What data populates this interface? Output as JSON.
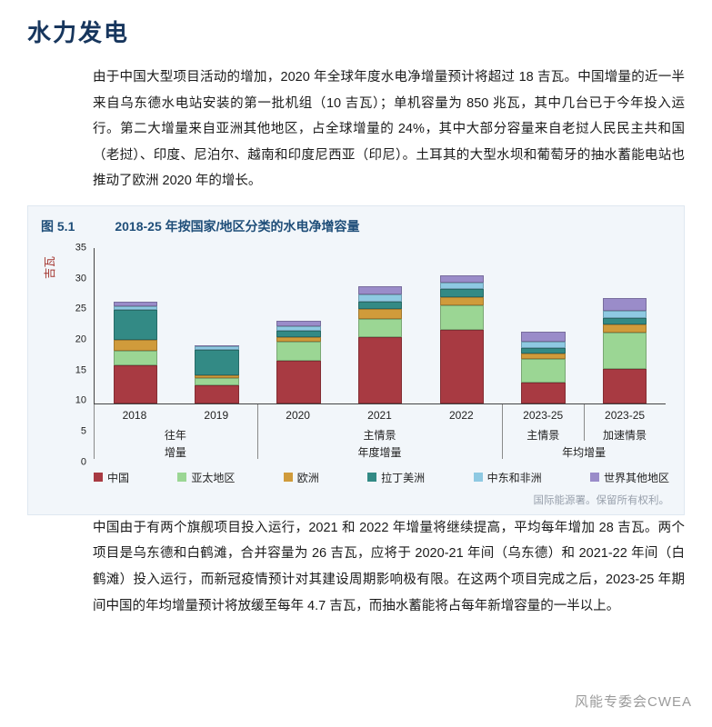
{
  "page": {
    "title": "水力发电",
    "paragraph1": "由于中国大型项目活动的增加，2020 年全球年度水电净增量预计将超过 18 吉瓦。中国增量的近一半来自乌东德水电站安装的第一批机组（10 吉瓦）；单机容量为 850 兆瓦，其中几台已于今年投入运行。第二大增量来自亚洲其他地区，占全球增量的 24%，其中大部分容量来自老挝人民民主共和国（老挝）、印度、尼泊尔、越南和印度尼西亚（印尼）。土耳其的大型水坝和葡萄牙的抽水蓄能电站也推动了欧洲 2020 年的增长。",
    "paragraph2": "中国由于有两个旗舰项目投入运行，2021 和 2022 年增量将继续提高，平均每年增加 28 吉瓦。两个项目是乌东德和白鹤滩，合并容量为 26 吉瓦，应将于 2020-21 年间（乌东德）和 2021-22 年间（白鹤滩）投入运行，而新冠疫情预计对其建设周期影响极有限。在这两个项目完成之后，2023-25 年期间中国的年均增量预计将放缓至每年 4.7 吉瓦，而抽水蓄能将占每年新增容量的一半以上。",
    "watermark": "风能专委会CWEA"
  },
  "figure": {
    "number": "图 5.1",
    "title": "2018-25 年按国家/地区分类的水电净增容量",
    "source": "国际能源署。保留所有权利。"
  },
  "chart_data": {
    "type": "bar",
    "stacked": true,
    "title": "2018-25 年按国家/地区分类的水电净增容量",
    "xlabel": "",
    "ylabel": "吉瓦",
    "ylim": [
      0,
      35
    ],
    "ytick_step": 5,
    "grid": false,
    "legend_position": "bottom",
    "categories": [
      "2018",
      "2019",
      "2020",
      "2021",
      "2022",
      "2023-25",
      "2023-25"
    ],
    "series": [
      {
        "name": "中国",
        "color": "#a83a42",
        "values": [
          8.5,
          4.1,
          9.5,
          15.0,
          16.5,
          4.7,
          7.8
        ]
      },
      {
        "name": "亚太地区",
        "color": "#9bd694",
        "values": [
          3.4,
          1.5,
          4.3,
          4.1,
          5.5,
          5.2,
          8.2
        ]
      },
      {
        "name": "欧洲",
        "color": "#d09b3b",
        "values": [
          2.4,
          0.8,
          1.2,
          2.1,
          2.0,
          1.4,
          1.7
        ]
      },
      {
        "name": "拉丁美洲",
        "color": "#338a85",
        "values": [
          6.8,
          5.6,
          1.3,
          1.6,
          1.7,
          1.2,
          1.6
        ]
      },
      {
        "name": "中东和非洲",
        "color": "#8ec9e2",
        "values": [
          0.8,
          0.8,
          1.0,
          1.7,
          1.4,
          1.4,
          1.6
        ]
      },
      {
        "name": "世界其他地区",
        "color": "#9a8cc9",
        "values": [
          1.0,
          0.3,
          1.2,
          1.8,
          1.8,
          2.3,
          2.8
        ]
      }
    ],
    "x_axis_bands": {
      "row2": [
        {
          "bars": [
            0,
            1
          ],
          "label": "往年"
        },
        {
          "bars": [
            2,
            3,
            4
          ],
          "label": "主情景"
        },
        {
          "bars": [
            5
          ],
          "label": "主情景"
        },
        {
          "bars": [
            6
          ],
          "label": "加速情景"
        }
      ],
      "row3": [
        {
          "bars": [
            0,
            1
          ],
          "label": "增量"
        },
        {
          "bars": [
            2,
            3,
            4
          ],
          "label": "年度增量"
        },
        {
          "bars": [
            5,
            6
          ],
          "label": "年均增量"
        }
      ],
      "separators_full": [
        0,
        2,
        5
      ],
      "separators_partial": [
        6
      ]
    }
  }
}
